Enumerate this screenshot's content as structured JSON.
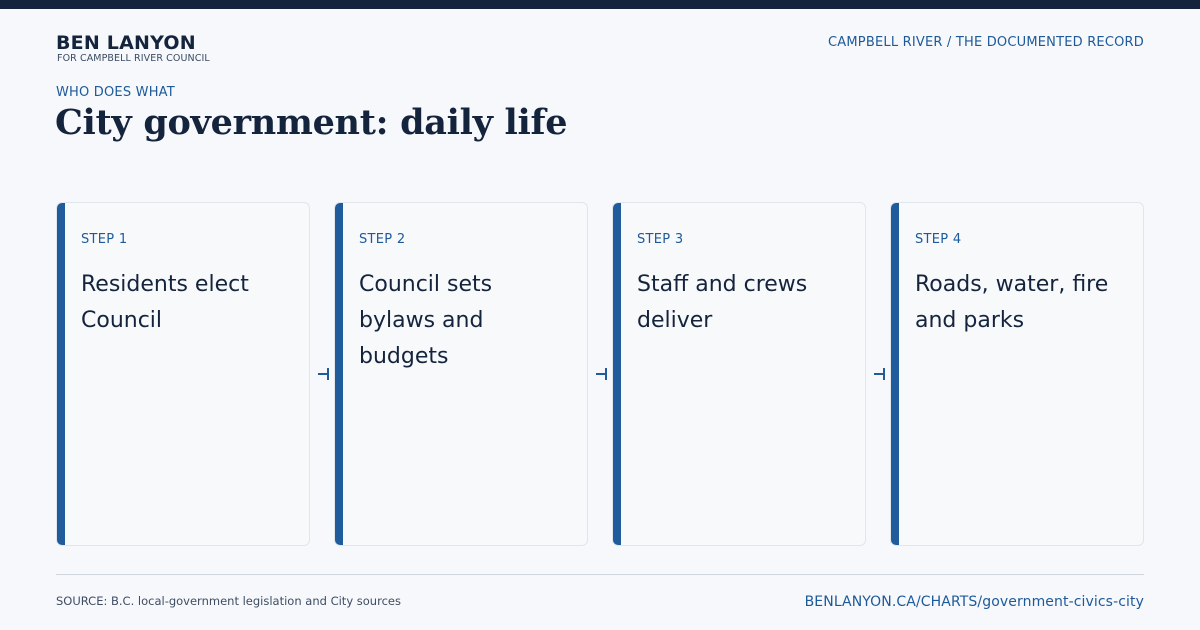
{
  "header": {
    "brand_name": "BEN LANYON",
    "brand_sub": "FOR CAMPBELL RIVER COUNCIL",
    "top_right": "CAMPBELL RIVER / THE DOCUMENTED RECORD"
  },
  "eyebrow": "WHO DOES WHAT",
  "title": "City government: daily life",
  "steps": [
    {
      "label": "STEP 1",
      "text": "Residents elect Council"
    },
    {
      "label": "STEP 2",
      "text": "Council sets bylaws and budgets"
    },
    {
      "label": "STEP 3",
      "text": "Staff and crews deliver"
    },
    {
      "label": "STEP 4",
      "text": "Roads, water, fire and parks"
    }
  ],
  "footer": {
    "source": "SOURCE: B.C. local-government legislation and City sources",
    "url": "BENLANYON.CA/CHARTS/government-civics-city"
  },
  "colors": {
    "accent": "#205c9c",
    "dark": "#15243d",
    "background": "#f6f8fb"
  }
}
